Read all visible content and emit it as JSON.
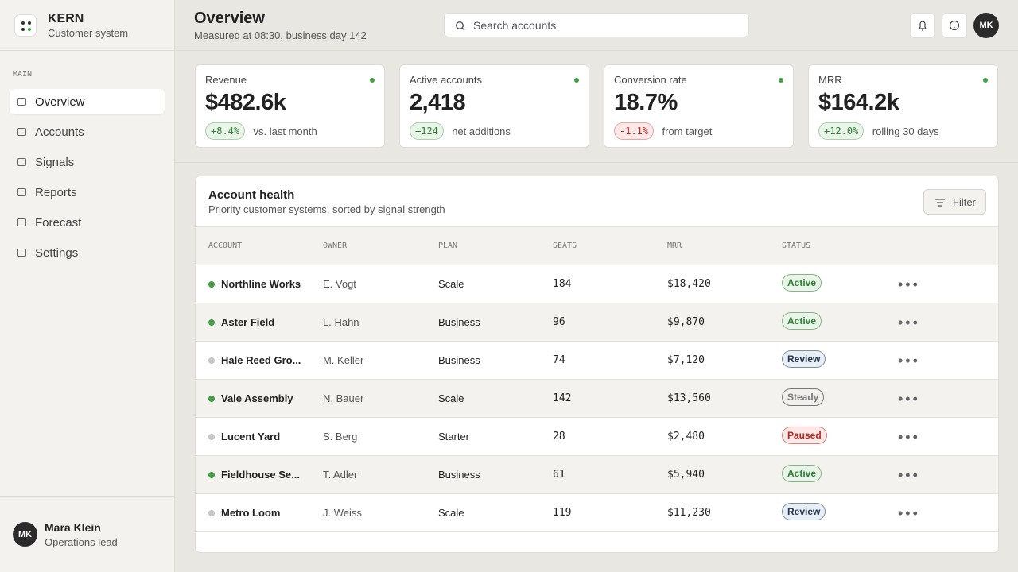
{
  "brand": {
    "name": "KERN",
    "subtitle": "Customer system"
  },
  "sidebar": {
    "section": "MAIN",
    "items": [
      "Overview",
      "Accounts",
      "Signals",
      "Reports",
      "Forecast",
      "Settings"
    ],
    "user": {
      "initials": "MK",
      "name": "Mara Klein",
      "role": "Operations lead"
    }
  },
  "header": {
    "title": "Overview",
    "subtitle": "Measured at 08:30, business day 142",
    "search": "Search accounts",
    "avatar": "MK"
  },
  "kpis": [
    {
      "label": "Revenue",
      "value": "$482.6k",
      "delta": "+8.4%",
      "note": "vs. last month",
      "color": "#2e7d32",
      "bg": "#e9f5e9"
    },
    {
      "label": "Active accounts",
      "value": "2,418",
      "delta": "+124",
      "note": "net additions",
      "color": "#2e7d32",
      "bg": "#e9f5e9"
    },
    {
      "label": "Conversion rate",
      "value": "18.7%",
      "delta": "-1.1%",
      "note": "from target",
      "color": "#b3261e",
      "bg": "#fde8e7"
    },
    {
      "label": "MRR",
      "value": "$164.2k",
      "delta": "+12.0%",
      "note": "rolling 30 days",
      "color": "#2e7d32",
      "bg": "#e9f5e9"
    }
  ],
  "table": {
    "title": "Account health",
    "subtitle": "Priority customer systems, sorted by signal strength",
    "filter": "Filter",
    "columns": [
      "ACCOUNT",
      "OWNER",
      "PLAN",
      "SEATS",
      "MRR",
      "STATUS"
    ],
    "rows": [
      {
        "cells": [
          "Northline Works",
          "E. Vogt",
          "Scale",
          "184",
          "$18,420"
        ],
        "status": "Active",
        "dot": "#43a047",
        "color": "#2e7d32",
        "bg": "#e9f5e9"
      },
      {
        "cells": [
          "Aster Field",
          "L. Hahn",
          "Business",
          "96",
          "$9,870"
        ],
        "status": "Active",
        "dot": "#43a047",
        "color": "#2e7d32",
        "bg": "#e9f5e9"
      },
      {
        "cells": [
          "Hale Reed Gro...",
          "M. Keller",
          "Business",
          "74",
          "$7,120"
        ],
        "status": "Review",
        "dot": "#c7c7c7",
        "color": "#24364d",
        "bg": "#e8eef5"
      },
      {
        "cells": [
          "Vale Assembly",
          "N. Bauer",
          "Scale",
          "142",
          "$13,560"
        ],
        "status": "Steady",
        "dot": "#43a047",
        "color": "#777",
        "bg": "#f1f0ed"
      },
      {
        "cells": [
          "Lucent Yard",
          "S. Berg",
          "Starter",
          "28",
          "$2,480"
        ],
        "status": "Paused",
        "dot": "#c7c7c7",
        "color": "#b3261e",
        "bg": "#fde8e7"
      },
      {
        "cells": [
          "Fieldhouse Se...",
          "T. Adler",
          "Business",
          "61",
          "$5,940"
        ],
        "status": "Active",
        "dot": "#43a047",
        "color": "#2e7d32",
        "bg": "#e9f5e9"
      },
      {
        "cells": [
          "Metro Loom",
          "J. Weiss",
          "Scale",
          "119",
          "$11,230"
        ],
        "status": "Review",
        "dot": "#c7c7c7",
        "color": "#24364d",
        "bg": "#e8eef5"
      }
    ]
  }
}
